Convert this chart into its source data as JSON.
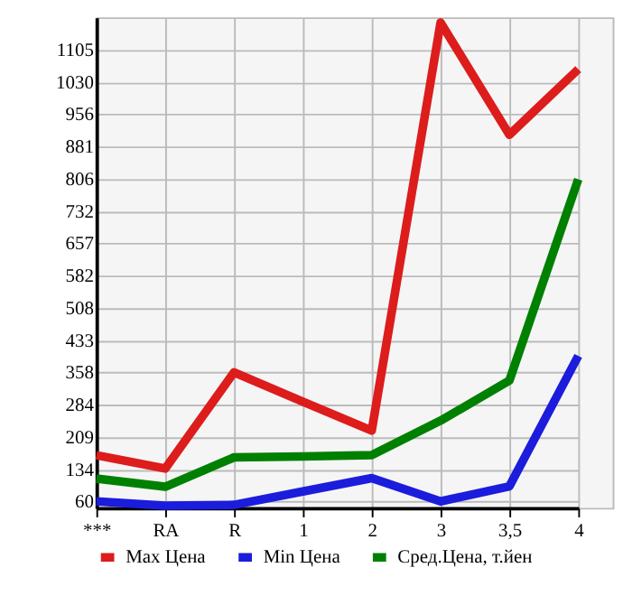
{
  "chart_data": {
    "type": "line",
    "categories": [
      "***",
      "RA",
      "R",
      "1",
      "2",
      "3",
      "3,5",
      "4"
    ],
    "series": [
      {
        "name": "Max Цена",
        "color": "#dd1c1c",
        "values": [
          167,
          136,
          359,
          291,
          224,
          1169,
          909,
          1061
        ]
      },
      {
        "name": "Min Цена",
        "color": "#1c1cdd",
        "values": [
          60,
          50,
          52,
          83,
          114,
          60,
          95,
          397
        ]
      },
      {
        "name": "Сред.Цена, т.йен",
        "color": "#008000",
        "values": [
          113,
          94,
          162,
          164,
          167,
          247,
          340,
          806
        ]
      }
    ],
    "ylim": [
      45,
      1181
    ],
    "yticks": [
      60,
      134,
      209,
      284,
      358,
      433,
      508,
      582,
      657,
      732,
      806,
      881,
      956,
      1030,
      1105
    ],
    "grid": true,
    "legend": "bottom",
    "marker": "none",
    "line_style": "solid"
  }
}
